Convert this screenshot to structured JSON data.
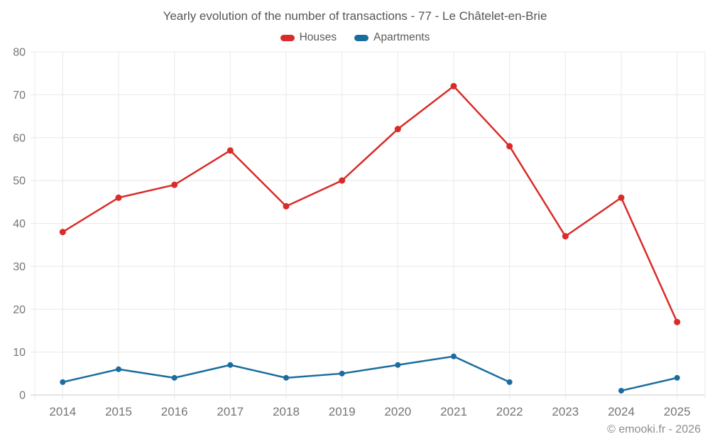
{
  "header": {
    "title": "Yearly evolution of the number of transactions - 77 - Le Châtelet-en-Brie"
  },
  "legend": [
    {
      "label": "Houses",
      "color": "#d92b28"
    },
    {
      "label": "Apartments",
      "color": "#1a6d9e"
    }
  ],
  "watermark": "© emooki.fr - 2026",
  "colors": {
    "grid": "#e8e8e8",
    "axis": "#c9c9c9",
    "tick_label": "#757575",
    "background": "#ffffff"
  },
  "chart_data": {
    "type": "line",
    "title": "Yearly evolution of the number of transactions - 77 - Le Châtelet-en-Brie",
    "categories": [
      "2014",
      "2015",
      "2016",
      "2017",
      "2018",
      "2019",
      "2020",
      "2021",
      "2022",
      "2023",
      "2024",
      "2025"
    ],
    "series": [
      {
        "name": "Houses",
        "color": "#d92b28",
        "values": [
          38,
          46,
          49,
          57,
          44,
          50,
          62,
          72,
          58,
          37,
          46,
          17
        ]
      },
      {
        "name": "Apartments",
        "color": "#1a6d9e",
        "values": [
          3,
          6,
          4,
          7,
          4,
          5,
          7,
          9,
          3,
          null,
          1,
          4
        ]
      }
    ],
    "xlabel": "",
    "ylabel": "",
    "ylim": [
      0,
      80
    ],
    "yticks": [
      0,
      10,
      20,
      30,
      40,
      50,
      60,
      70,
      80
    ],
    "grid": true,
    "legend_position": "top",
    "notes": "Apartments series has a gap (no data point) in 2023"
  }
}
